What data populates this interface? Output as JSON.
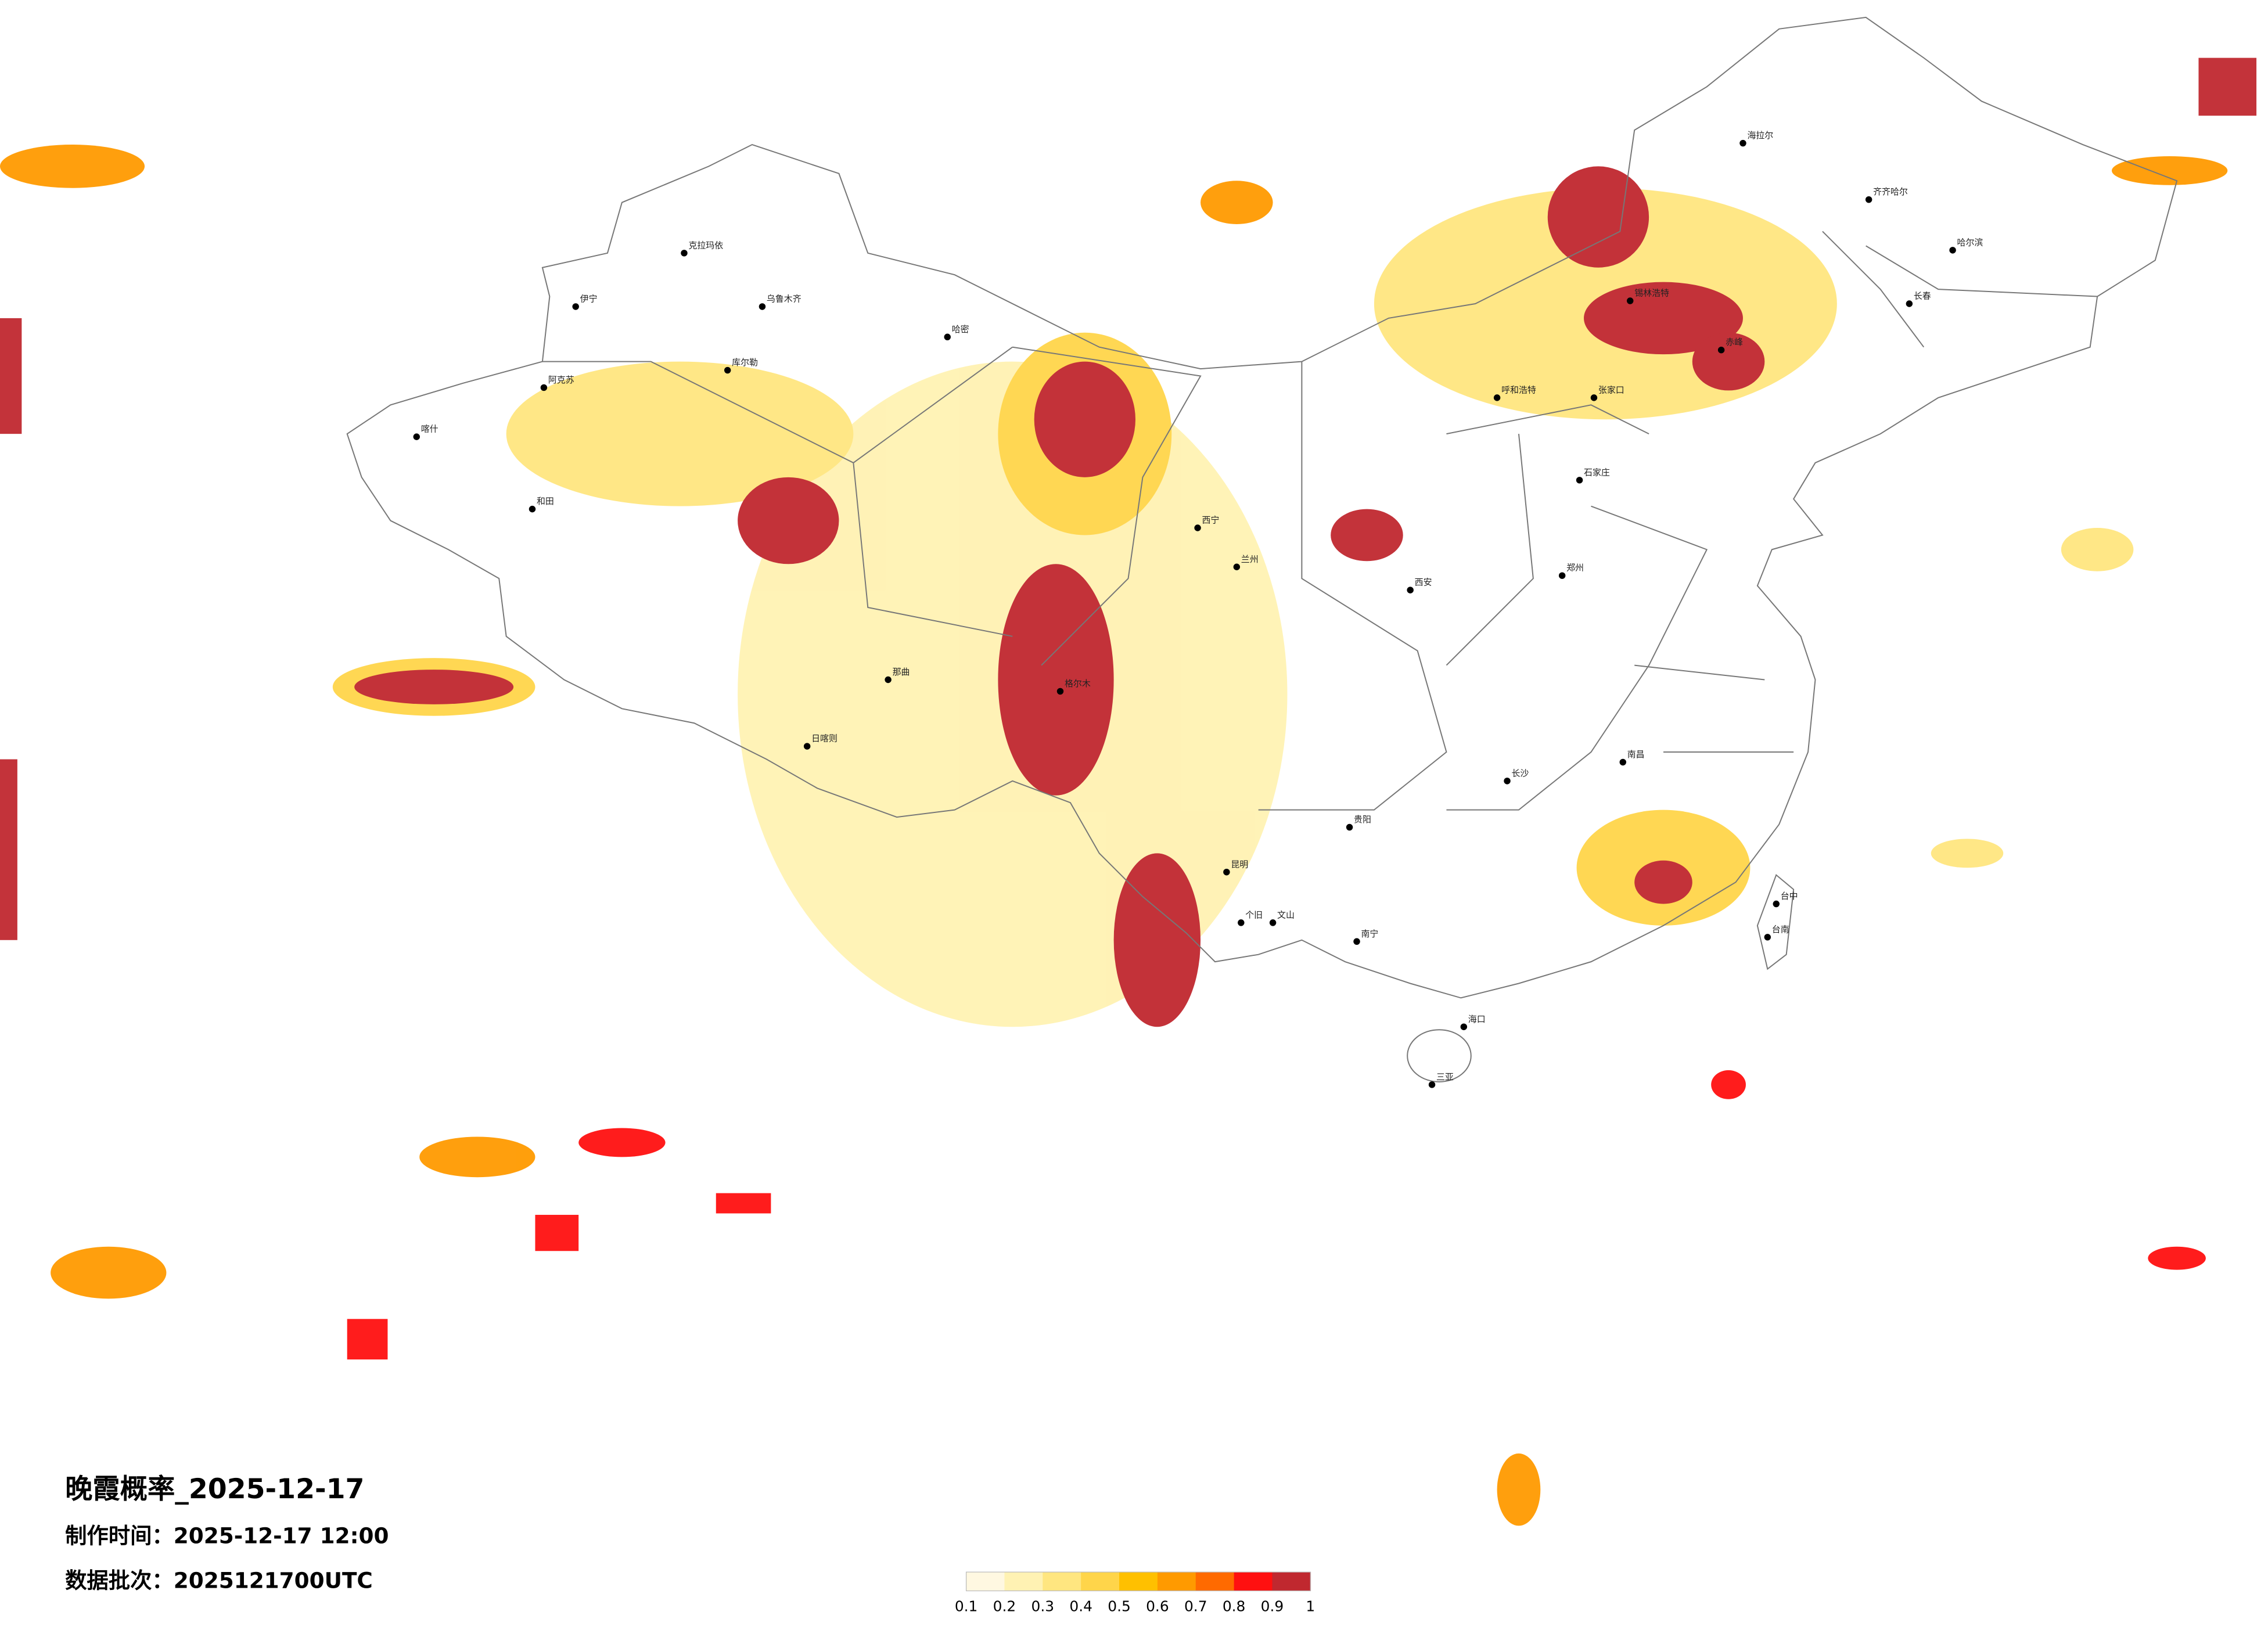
{
  "header": {
    "title": "晚霞概率_2025-12-17",
    "made_time": "制作时间：2025-12-17 12:00",
    "batch": "数据批次：2025121700UTC"
  },
  "colorbar": {
    "ticks": [
      0.1,
      0.2,
      0.3,
      0.4,
      0.5,
      0.6,
      0.7,
      0.8,
      0.9,
      1
    ],
    "colors": [
      "#fff8e1",
      "#fff2b3",
      "#ffe680",
      "#ffd54a",
      "#ffc000",
      "#ff9a00",
      "#ff6a00",
      "#ff1010",
      "#c0282f"
    ]
  },
  "cities": [
    "克拉玛依",
    "伊宁",
    "乌鲁木齐",
    "库尔勒",
    "阿克苏",
    "喀什",
    "和田",
    "哈密",
    "那曲",
    "日喀则",
    "格尔木",
    "西宁",
    "兰州",
    "呼和浩特",
    "张家口",
    "锡林浩特",
    "赤峰",
    "海拉尔",
    "齐齐哈尔",
    "哈尔滨",
    "长春",
    "石家庄",
    "郑州",
    "西安",
    "长沙",
    "南昌",
    "贵阳",
    "昆明",
    "南宁",
    "海口",
    "三亚",
    "台中",
    "台南",
    "个旧",
    "文山"
  ]
}
